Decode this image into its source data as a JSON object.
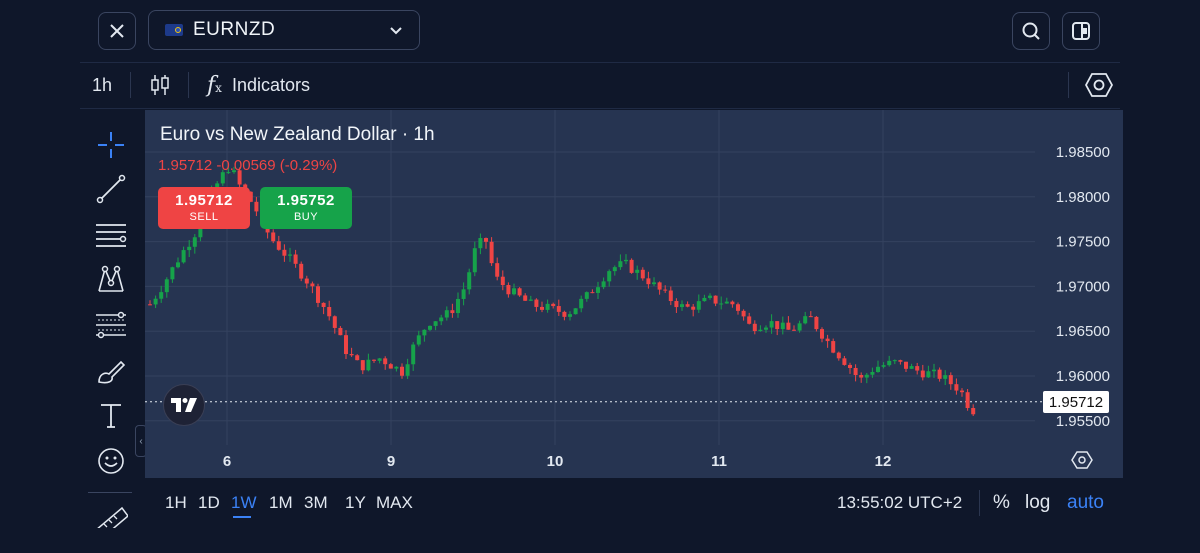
{
  "header": {
    "symbol": "EURNZD"
  },
  "toolbar": {
    "interval": "1h",
    "indicators_label": "Indicators"
  },
  "chart": {
    "title": "Euro vs New Zealand Dollar · 1h",
    "change": "1.95712 -0.00569 (-0.29%)",
    "sell": {
      "price": "1.95712",
      "label": "SELL"
    },
    "buy": {
      "price": "1.95752",
      "label": "BUY"
    },
    "current_price": "1.95712",
    "price_axis": [
      "1.98500",
      "1.98000",
      "1.97500",
      "1.97000",
      "1.96500",
      "1.96000",
      "1.95500"
    ],
    "time_axis": [
      "6",
      "9",
      "10",
      "11",
      "12"
    ]
  },
  "colors": {
    "up": "#16a34a",
    "down": "#ef4444",
    "accent": "#3b82f6",
    "chart_bg": "#263451",
    "app_bg": "#0f172a"
  },
  "bottom": {
    "ranges": [
      "1H",
      "1D",
      "1W",
      "1M",
      "3M",
      "1Y",
      "MAX"
    ],
    "active_range": "1W",
    "clock": "13:55:02 UTC+2",
    "percent": "%",
    "log": "log",
    "auto": "auto"
  },
  "icons": {
    "close": "close-icon",
    "search": "search-icon",
    "layout": "layout-icon",
    "candles": "candles-icon",
    "fx": "fx-icon",
    "settings": "hexagon-settings-icon"
  }
}
